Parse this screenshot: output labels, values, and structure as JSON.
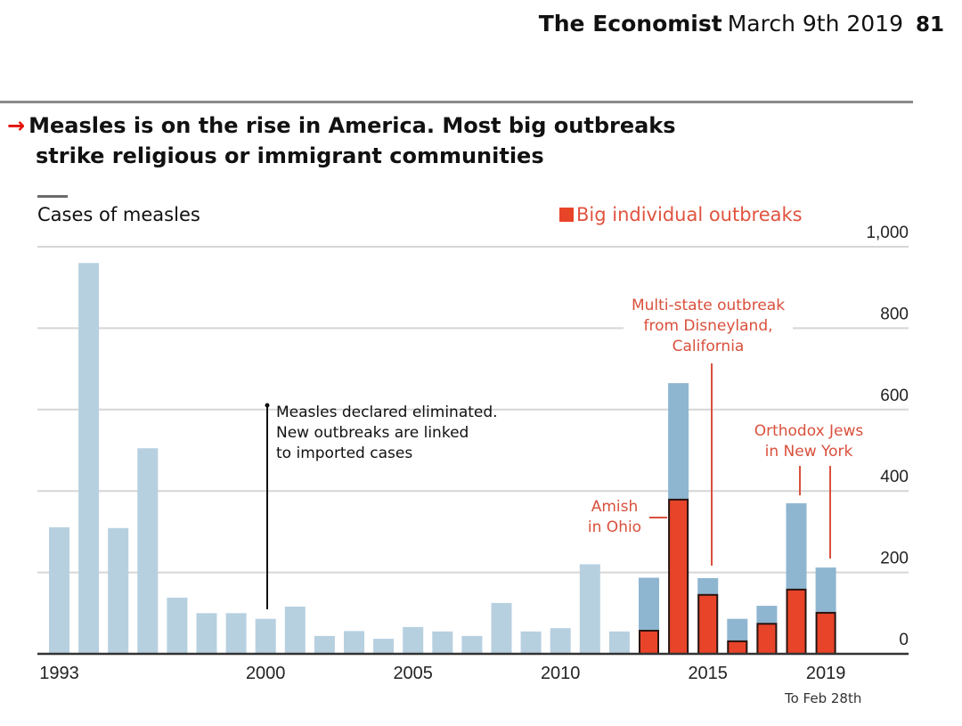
{
  "masthead": {
    "brand": "The Economist",
    "date": "March 9th 2019",
    "page": "81"
  },
  "headline": {
    "arrow": "→",
    "line1": "Measles is on the rise in America. Most big outbreaks",
    "line2": "strike religious or immigrant communities"
  },
  "chart_data": {
    "type": "bar",
    "title": "Measles is on the rise in America. Most big outbreaks strike religious or immigrant communities",
    "ylabel": "Cases of measles",
    "xlabel": "",
    "ylim": [
      0,
      1000
    ],
    "yticks": [
      0,
      200,
      400,
      600,
      800,
      1000
    ],
    "ytick_labels": [
      "0",
      "200",
      "400",
      "600",
      "800",
      "1,000"
    ],
    "xtick_labels": [
      {
        "year": 1993,
        "label": "1993"
      },
      {
        "year": 2000,
        "label": "2000"
      },
      {
        "year": 2005,
        "label": "2005"
      },
      {
        "year": 2010,
        "label": "2010"
      },
      {
        "year": 2015,
        "label": "2015"
      },
      {
        "year": 2019,
        "label": "2019"
      }
    ],
    "grid": true,
    "categories": [
      1993,
      1994,
      1995,
      1996,
      1997,
      1998,
      1999,
      2000,
      2001,
      2002,
      2003,
      2004,
      2005,
      2006,
      2007,
      2008,
      2009,
      2010,
      2011,
      2012,
      2013,
      2014,
      2015,
      2016,
      2017,
      2018,
      2019
    ],
    "series": [
      {
        "name": "Cases of measles",
        "color": "#b7d0e0",
        "color_recent": "#8fb6d0",
        "values": [
          311,
          960,
          309,
          505,
          138,
          100,
          100,
          86,
          116,
          44,
          56,
          37,
          66,
          55,
          44,
          125,
          55,
          63,
          220,
          55,
          187,
          665,
          186,
          86,
          118,
          370,
          212
        ]
      },
      {
        "name": "Big individual outbreaks",
        "color": "#e8442a",
        "values": [
          0,
          0,
          0,
          0,
          0,
          0,
          0,
          0,
          0,
          0,
          0,
          0,
          0,
          0,
          0,
          0,
          0,
          0,
          0,
          0,
          59,
          381,
          147,
          33,
          76,
          160,
          103
        ]
      }
    ],
    "legend": {
      "label": "Big individual outbreaks",
      "position": "top-right"
    },
    "annotations": [
      {
        "id": "eliminated",
        "year": 2000,
        "lines": [
          "Measles declared eliminated.",
          "New outbreaks are linked",
          "to imported cases"
        ],
        "color": "#111111"
      },
      {
        "id": "disneyland",
        "year": 2015,
        "lines": [
          "Multi-state outbreak",
          "from Disneyland,",
          "California"
        ],
        "color": "#d9503c"
      },
      {
        "id": "amish",
        "year": 2014,
        "lines": [
          "Amish",
          "in Ohio"
        ],
        "color": "#d9503c"
      },
      {
        "id": "orthodox",
        "years": [
          2018,
          2019
        ],
        "lines": [
          "Orthodox Jews",
          "in New York"
        ],
        "color": "#d9503c"
      }
    ],
    "footnote": "To Feb 28th"
  }
}
